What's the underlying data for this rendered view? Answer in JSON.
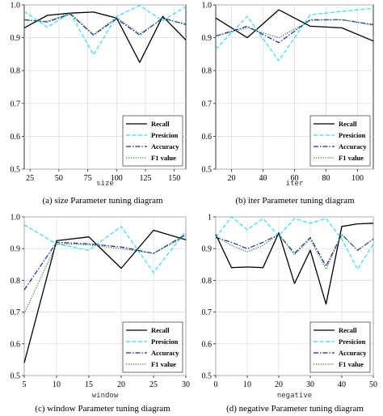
{
  "colors": {
    "recall": "#000000",
    "precision": "#22e5ee",
    "accuracy": "#1f1fb0",
    "f1": "#2f8f2f"
  },
  "chart_data": [
    {
      "type": "line",
      "xlabel": "size",
      "ylabel": "",
      "caption": "(a) size Parameter tuning diagram",
      "xlim": [
        20,
        160
      ],
      "ylim": [
        0.5,
        1.0
      ],
      "xticks": [
        25,
        50,
        75,
        100,
        125,
        150
      ],
      "yticks": [
        0.5,
        0.6,
        0.7,
        0.8,
        0.9,
        1.0
      ],
      "ytick_labels": [
        "0.5",
        "0.6",
        "0.7",
        "0.8",
        "0.9",
        "1.0"
      ],
      "legend": "lower-right",
      "x": [
        20,
        40,
        60,
        80,
        100,
        120,
        140,
        160
      ],
      "series": [
        {
          "name": "Recall",
          "values": [
            0.93,
            0.968,
            0.975,
            0.978,
            0.96,
            0.825,
            0.965,
            0.893
          ]
        },
        {
          "name": "Presicion",
          "values": [
            0.98,
            0.932,
            0.975,
            0.848,
            0.965,
            0.998,
            0.952,
            0.995
          ]
        },
        {
          "name": "Accuracy",
          "values": [
            0.955,
            0.948,
            0.972,
            0.908,
            0.958,
            0.908,
            0.96,
            0.94
          ]
        },
        {
          "name": "F1 value",
          "values": [
            0.953,
            0.95,
            0.975,
            0.91,
            0.962,
            0.912,
            0.958,
            0.942
          ]
        }
      ]
    },
    {
      "type": "line",
      "xlabel": "iter",
      "ylabel": "",
      "caption": "(b) iter Parameter tuning diagram",
      "xlim": [
        10,
        110
      ],
      "ylim": [
        0.5,
        1.0
      ],
      "xticks": [
        20,
        40,
        60,
        80,
        100
      ],
      "yticks": [
        0.5,
        0.6,
        0.7,
        0.8,
        0.9,
        1.0
      ],
      "ytick_labels": [
        "0.5",
        "0.6",
        "0.7",
        "0.8",
        "0.9",
        "1.0"
      ],
      "legend": "lower-right",
      "x": [
        10,
        30,
        50,
        70,
        90,
        110
      ],
      "series": [
        {
          "name": "Recall",
          "values": [
            0.96,
            0.9,
            0.985,
            0.935,
            0.93,
            0.89
          ]
        },
        {
          "name": "Presicion",
          "values": [
            0.865,
            0.965,
            0.83,
            0.97,
            0.98,
            0.99
          ]
        },
        {
          "name": "Accuracy",
          "values": [
            0.905,
            0.935,
            0.885,
            0.955,
            0.955,
            0.94
          ]
        },
        {
          "name": "F1 value",
          "values": [
            0.905,
            0.93,
            0.9,
            0.952,
            0.955,
            0.938
          ]
        }
      ]
    },
    {
      "type": "line",
      "xlabel": "window",
      "ylabel": "",
      "caption": "(c) window Parameter tuning diagram",
      "xlim": [
        5,
        30
      ],
      "ylim": [
        0.5,
        1.0
      ],
      "xticks": [
        5,
        10,
        15,
        20,
        25,
        30
      ],
      "yticks": [
        0.5,
        0.6,
        0.7,
        0.8,
        0.9,
        1.0
      ],
      "ytick_labels": [
        "0.5",
        "0.6",
        "0.7",
        "0.8",
        "0.9",
        "1.0"
      ],
      "legend": "lower-right",
      "x": [
        5,
        10,
        15,
        20,
        25,
        30
      ],
      "series": [
        {
          "name": "Recall",
          "values": [
            0.54,
            0.925,
            0.937,
            0.838,
            0.958,
            0.928
          ]
        },
        {
          "name": "Presicion",
          "values": [
            0.975,
            0.915,
            0.895,
            0.97,
            0.825,
            0.955
          ]
        },
        {
          "name": "Accuracy",
          "values": [
            0.77,
            0.92,
            0.915,
            0.905,
            0.885,
            0.945
          ]
        },
        {
          "name": "F1 value",
          "values": [
            0.695,
            0.915,
            0.912,
            0.9,
            0.885,
            0.94
          ]
        }
      ]
    },
    {
      "type": "line",
      "xlabel": "negative",
      "ylabel": "",
      "caption": "(d) negative Parameter tuning diagram",
      "xlim": [
        0,
        50
      ],
      "ylim": [
        0.5,
        1.0
      ],
      "xticks": [
        0,
        10,
        20,
        30,
        40,
        50
      ],
      "yticks": [
        0.5,
        0.6,
        0.7,
        0.8,
        0.9,
        1.0
      ],
      "ytick_labels": [
        "0.5",
        "0.6",
        "0.7",
        "0.8",
        "0.9",
        "1"
      ],
      "legend": "lower-right",
      "x": [
        0,
        5,
        10,
        15,
        20,
        25,
        30,
        35,
        40,
        45,
        50
      ],
      "series": [
        {
          "name": "Recall",
          "values": [
            0.945,
            0.84,
            0.842,
            0.84,
            0.95,
            0.79,
            0.895,
            0.725,
            0.97,
            0.978,
            0.98
          ]
        },
        {
          "name": "Presicion",
          "values": [
            0.935,
            1.0,
            0.96,
            0.995,
            0.94,
            0.995,
            0.98,
            0.995,
            0.93,
            0.835,
            0.915
          ]
        },
        {
          "name": "Accuracy",
          "values": [
            0.935,
            0.92,
            0.9,
            0.92,
            0.945,
            0.885,
            0.935,
            0.845,
            0.945,
            0.895,
            0.93
          ]
        },
        {
          "name": "F1 value",
          "values": [
            0.94,
            0.91,
            0.89,
            0.91,
            0.945,
            0.88,
            0.93,
            0.835,
            0.945,
            0.895,
            0.93
          ]
        }
      ]
    }
  ]
}
